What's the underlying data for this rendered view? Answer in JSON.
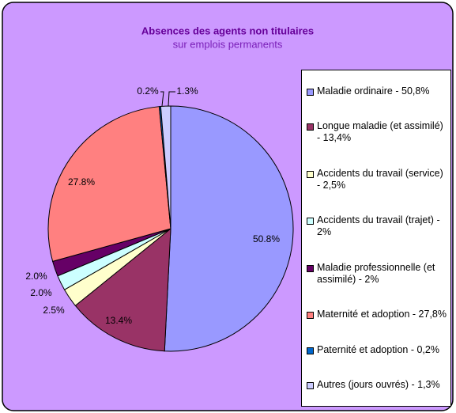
{
  "chart_data": {
    "type": "pie",
    "title": "Absences des agents non titulaires",
    "subtitle": "sur emplois permanents",
    "categories": [
      "Maladie ordinaire - 50,8%",
      "Longue maladie (et assimilé) - 13,4%",
      "Accidents du travail (service) - 2,5%",
      "Accidents du travail (trajet) - 2%",
      "Maladie professionnelle (et assimilé) - 2%",
      "Maternité et adoption - 27,8%",
      "Paternité et adoption - 0,2%",
      "Autres (jours ouvrés) - 1,3%"
    ],
    "values": [
      50.8,
      13.4,
      2.5,
      2.0,
      2.0,
      27.8,
      0.2,
      1.3
    ],
    "value_labels": [
      "50.8%",
      "13.4%",
      "2.5%",
      "2.0%",
      "2.0%",
      "27.8%",
      "0.2%",
      "1.3%"
    ],
    "colors": [
      "#9999ff",
      "#993366",
      "#ffffcc",
      "#ccffff",
      "#660066",
      "#ff8080",
      "#0066cc",
      "#ccccff"
    ],
    "legend": "right"
  }
}
